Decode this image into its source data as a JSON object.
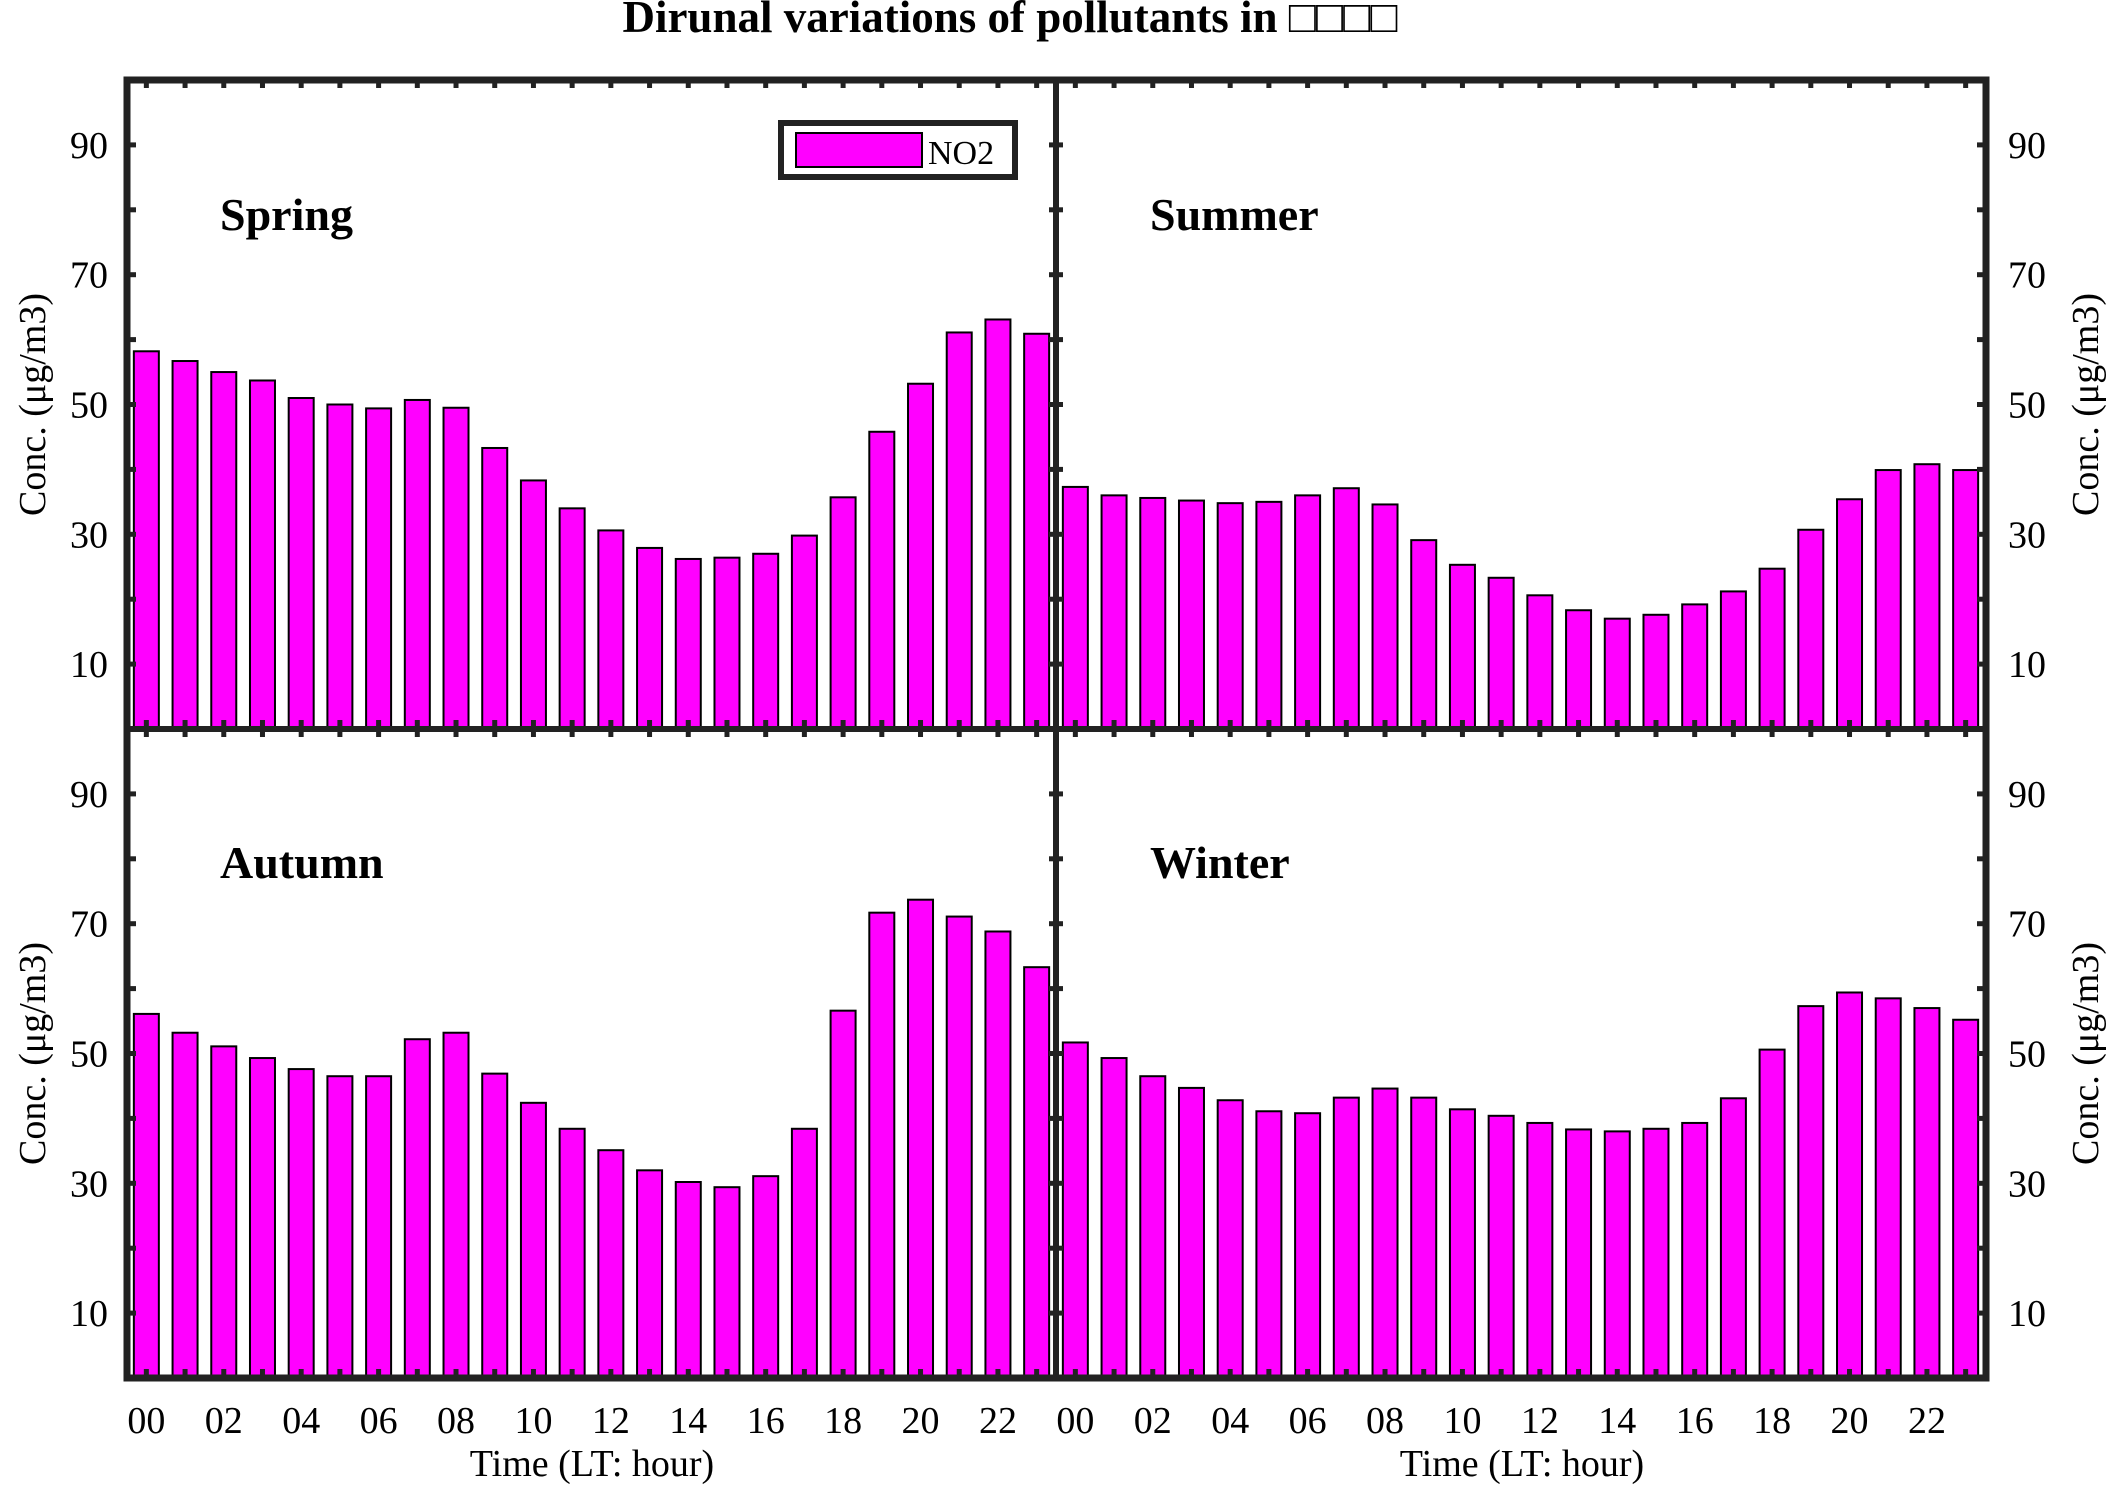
{
  "colors": {
    "bar_fill": "#ff00ff",
    "bar_stroke": "#000000",
    "frame": "#222222"
  },
  "chart_data": {
    "type": "bar",
    "title": "Dirunal variations of pollutants in □□□□",
    "xlabel": "Time (LT: hour)",
    "ylabel": "Conc. (μg/m3)",
    "ylim": [
      0,
      100
    ],
    "yticks": [
      10,
      30,
      50,
      70,
      90
    ],
    "xticks": [
      "00",
      "02",
      "04",
      "06",
      "08",
      "10",
      "12",
      "14",
      "16",
      "18",
      "20",
      "22"
    ],
    "legend": {
      "position": "top-right",
      "entries": [
        "NO2"
      ]
    },
    "x": [
      0,
      1,
      2,
      3,
      4,
      5,
      6,
      7,
      8,
      9,
      10,
      11,
      12,
      13,
      14,
      15,
      16,
      17,
      18,
      19,
      20,
      21,
      22,
      23
    ],
    "panels": [
      {
        "season": "Spring",
        "series": [
          {
            "name": "NO2",
            "values": [
              58.2,
              56.7,
              55.0,
              53.7,
              51.0,
              50.0,
              49.4,
              50.7,
              49.5,
              43.3,
              38.3,
              34.0,
              30.6,
              27.9,
              26.2,
              26.4,
              27.0,
              29.8,
              35.7,
              45.8,
              53.2,
              61.1,
              63.1,
              60.9
            ]
          }
        ]
      },
      {
        "season": "Summer",
        "series": [
          {
            "name": "NO2",
            "values": [
              37.3,
              36.0,
              35.6,
              35.2,
              34.8,
              35.0,
              36.0,
              37.1,
              34.6,
              29.1,
              25.3,
              23.3,
              20.6,
              18.3,
              17.0,
              17.6,
              19.2,
              21.2,
              24.7,
              30.7,
              35.4,
              39.9,
              40.8,
              39.9
            ]
          }
        ]
      },
      {
        "season": "Autumn",
        "series": [
          {
            "name": "NO2",
            "values": [
              56.1,
              53.2,
              51.1,
              49.3,
              47.6,
              46.5,
              46.5,
              52.2,
              53.2,
              46.9,
              42.4,
              38.4,
              35.1,
              32.0,
              30.2,
              29.4,
              31.1,
              38.4,
              56.6,
              71.7,
              73.7,
              71.1,
              68.8,
              63.3
            ]
          }
        ]
      },
      {
        "season": "Winter",
        "series": [
          {
            "name": "NO2",
            "values": [
              51.7,
              49.3,
              46.5,
              44.7,
              42.8,
              41.1,
              40.8,
              43.2,
              44.6,
              43.2,
              41.4,
              40.4,
              39.3,
              38.3,
              38.0,
              38.4,
              39.3,
              43.1,
              50.6,
              57.3,
              59.4,
              58.5,
              57.0,
              55.2
            ]
          }
        ]
      }
    ]
  }
}
